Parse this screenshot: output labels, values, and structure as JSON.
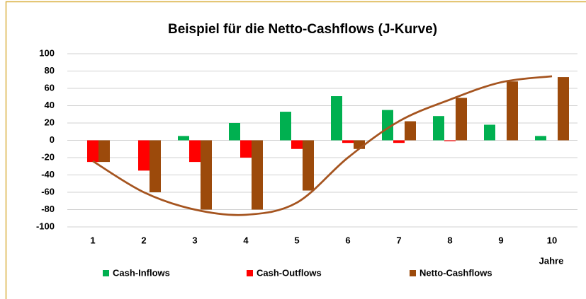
{
  "chart_data": {
    "type": "bar",
    "title": "Beispiel für die Netto-Cashflows (J-Kurve)",
    "x_label": "Jahre",
    "categories": [
      "1",
      "2",
      "3",
      "4",
      "5",
      "6",
      "7",
      "8",
      "9",
      "10"
    ],
    "series": [
      {
        "name": "Cash-Inflows",
        "color": "#00b050",
        "values": [
          0,
          0,
          5,
          20,
          33,
          51,
          35,
          28,
          18,
          5
        ]
      },
      {
        "name": "Cash-Outflows",
        "color": "#ff0000",
        "values": [
          -25,
          -35,
          -25,
          -20,
          -10,
          -3,
          -3,
          -1,
          0,
          0
        ]
      },
      {
        "name": "Netto-Cashflows",
        "color": "#9c4a0b",
        "values": [
          -25,
          -60,
          -80,
          -80,
          -58,
          -10,
          22,
          49,
          68,
          73
        ]
      }
    ],
    "curve": {
      "color": "#a5541f",
      "values": [
        -24,
        -60,
        -80,
        -86,
        -72,
        -20,
        22,
        47,
        67,
        74
      ]
    },
    "ylim": [
      -100,
      100
    ],
    "yticks": [
      -100,
      -80,
      -60,
      -40,
      -20,
      0,
      20,
      40,
      60,
      80,
      100
    ],
    "grid": true,
    "legend": "bottom"
  }
}
